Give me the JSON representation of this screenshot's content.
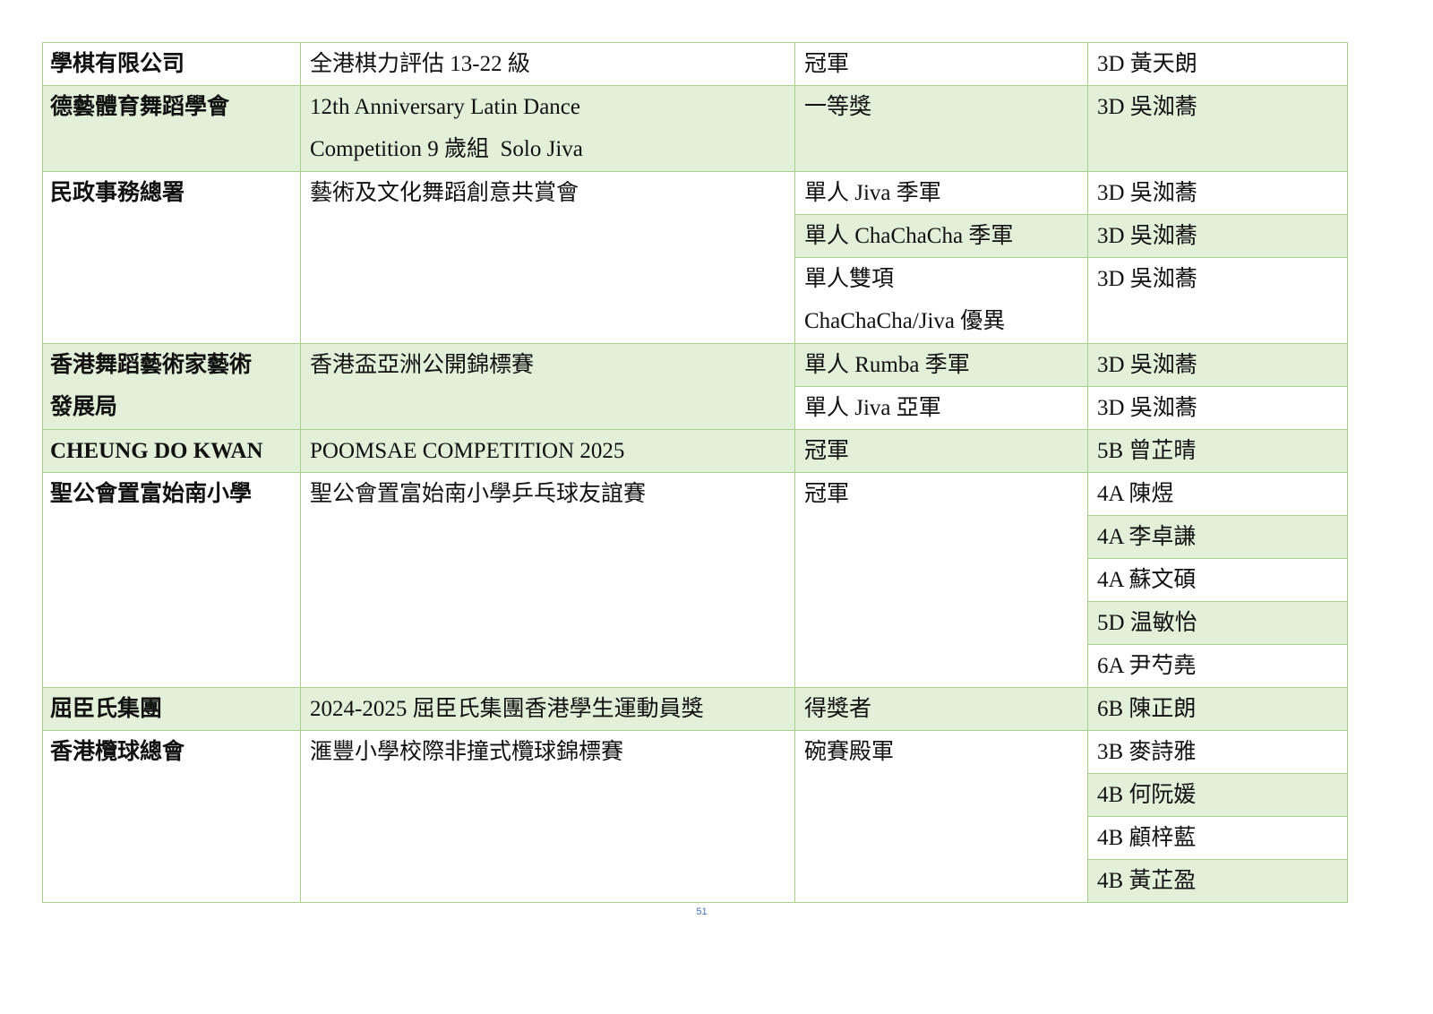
{
  "colors": {
    "row_fill": "#e2efd9",
    "border": "#a9d18e"
  },
  "rows": [
    {
      "org": "學棋有限公司",
      "event": "全港棋力評估 13-22 級",
      "awards": [
        "冠軍"
      ],
      "students": [
        "3D 黃天朗"
      ]
    },
    {
      "org": "德藝體育舞蹈學會",
      "event": "12th Anniversary Latin Dance\nCompetition 9 歲組  Solo Jiva",
      "awards": [
        "一等獎"
      ],
      "students": [
        "3D 吳洳蕎"
      ]
    },
    {
      "org": "民政事務總署",
      "event": "藝術及文化舞蹈創意共賞會",
      "awards": [
        "單人 Jiva 季軍",
        "單人 ChaChaCha 季軍",
        "單人雙項\nChaChaCha/Jiva 優異"
      ],
      "students": [
        "3D 吳洳蕎",
        "3D 吳洳蕎",
        "3D 吳洳蕎"
      ]
    },
    {
      "org": "香港舞蹈藝術家藝術\n發展局",
      "event": "香港盃亞洲公開錦標賽",
      "awards": [
        "單人 Rumba 季軍",
        "單人 Jiva 亞軍"
      ],
      "students": [
        "3D 吳洳蕎",
        "3D 吳洳蕎"
      ]
    },
    {
      "org": "CHEUNG DO KWAN",
      "event": "POOMSAE COMPETITION 2025",
      "awards": [
        "冠軍"
      ],
      "students": [
        "5B 曾芷晴"
      ]
    },
    {
      "org": "聖公會置富始南小學",
      "event": "聖公會置富始南小學乒乓球友誼賽",
      "awards": [
        "冠軍"
      ],
      "students": [
        "4A 陳煜",
        "4A 李卓謙",
        "4A 蘇文碩",
        "5D 温敏怡",
        "6A 尹芍堯"
      ]
    },
    {
      "org": "屈臣氏集團",
      "event": "2024-2025 屈臣氏集團香港學生運動員獎",
      "awards": [
        "得獎者"
      ],
      "students": [
        "6B 陳正朗"
      ]
    },
    {
      "org": "香港欖球總會",
      "event": "滙豐小學校際非撞式欖球錦標賽",
      "awards": [
        "碗賽殿軍"
      ],
      "students": [
        "3B 麥詩雅",
        "4B 何阮媛",
        "4B 顧梓藍",
        "4B 黃芷盈"
      ]
    }
  ],
  "page_number": "51"
}
